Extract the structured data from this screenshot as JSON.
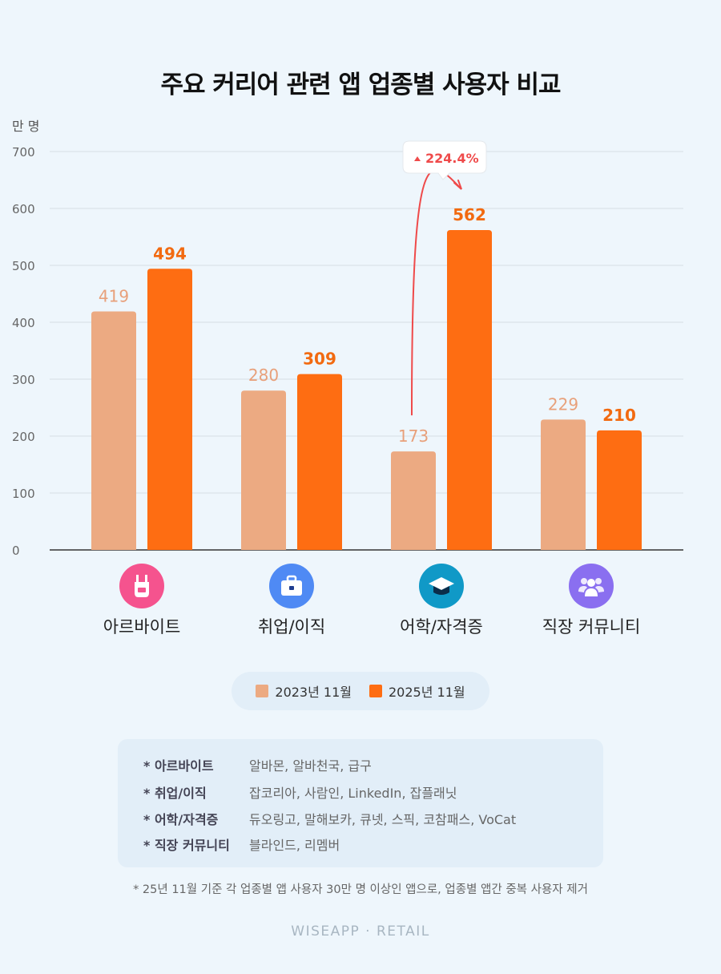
{
  "title": "주요 커리어 관련 앱 업종별 사용자 비교",
  "colors": {
    "s2023": "#ecaa82",
    "s2025": "#fe6d12",
    "s2023_label": "#e8a07a",
    "s2025_label": "#f26a10",
    "arrow": "#ef4a4a"
  },
  "chart_data": {
    "type": "bar",
    "title": "주요 커리어 관련 앱 업종별 사용자 비교",
    "ylabel": "만 명",
    "ylim": [
      0,
      700
    ],
    "yticks": [
      "0",
      "100",
      "200",
      "300",
      "400",
      "500",
      "600",
      "700"
    ],
    "categories": [
      "아르바이트",
      "취업/이직",
      "어학/자격증",
      "직장 커뮤니티"
    ],
    "series": [
      {
        "name": "2023년 11월",
        "values": [
          419,
          280,
          173,
          229
        ]
      },
      {
        "name": "2025년 11월",
        "values": [
          494,
          309,
          562,
          210
        ]
      }
    ],
    "annotation": {
      "category": "어학/자격증",
      "text": "224.4%",
      "direction": "up"
    },
    "grid": true,
    "legend": "bottom"
  },
  "icons": [
    "apron-icon",
    "briefcase-icon",
    "graduation-cap-icon",
    "people-icon"
  ],
  "icon_colors": [
    "#f5538e",
    "#4f8af4",
    "#1099c7",
    "#8a6ff0"
  ],
  "legend": {
    "s2023": "2023년 11월",
    "s2025": "2025년 11월"
  },
  "notes": [
    {
      "key": "* 아르바이트",
      "value": "알바몬, 알바천국, 급구"
    },
    {
      "key": "* 취업/이직",
      "value": "잡코리아, 사람인, LinkedIn, 잡플래닛"
    },
    {
      "key": "* 어학/자격증",
      "value": "듀오링고, 말해보카, 큐넷, 스픽, 코참패스, VoCat"
    },
    {
      "key": "* 직장 커뮤니티",
      "value": "블라인드, 리멤버"
    }
  ],
  "footnote": "* 25년 11월 기준 각 업종별 앱 사용자 30만 명 이상인 앱으로, 업종별 앱간 중복 사용자 제거",
  "brand": "WISEAPP · RETAIL"
}
